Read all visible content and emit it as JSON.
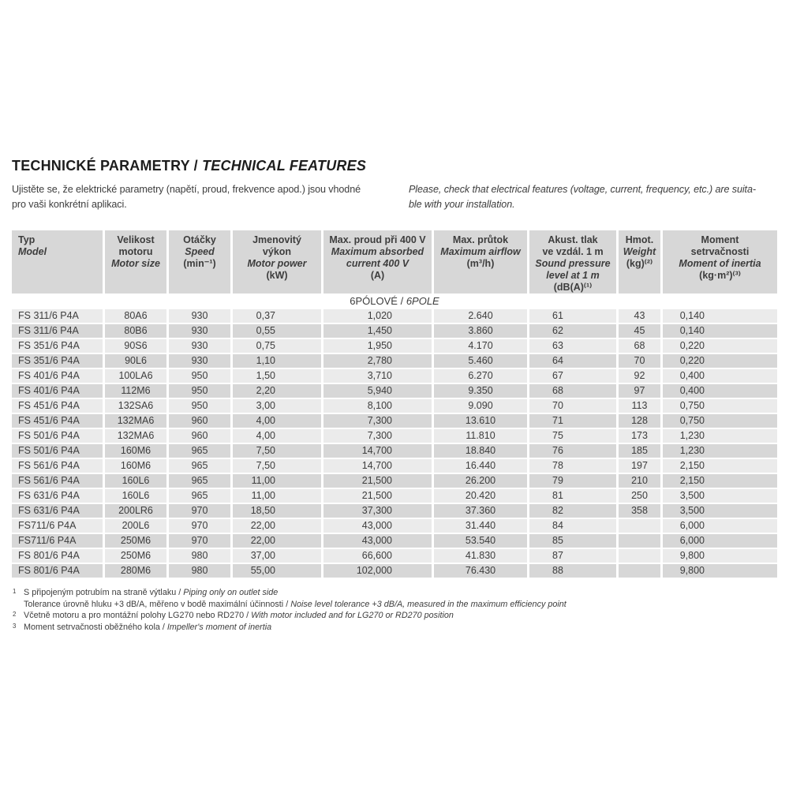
{
  "colors": {
    "header_cell": "#d7d7d7",
    "row_dark": "#d7d7d7",
    "row_light": "#ebebeb",
    "text": "#3d3d3d",
    "title_text": "#1d1d1d"
  },
  "header": {
    "title_cs": "TECHNICKÉ PARAMETRY / ",
    "title_en": "TECHNICAL FEATURES",
    "intro_cs_lines": [
      "Ujistěte se, že elektrické parametry (napětí, proud, frekvence apod.) jsou vhodné",
      "pro vaši konkrétní aplikaci."
    ],
    "intro_en_lines": [
      "Please, check that electrical features (voltage, current, frequency, etc.) are suita-",
      "ble with your installation."
    ]
  },
  "table": {
    "section_cs": "6PÓLOVÉ / ",
    "section_en": "6POLE",
    "columns": [
      {
        "cs_lines": [
          "Typ"
        ],
        "en_lines": [
          "Model"
        ],
        "unit": ""
      },
      {
        "cs_lines": [
          "Velikost",
          "motoru"
        ],
        "en_lines": [
          "Motor size"
        ],
        "unit": ""
      },
      {
        "cs_lines": [
          "Otáčky"
        ],
        "en_lines": [
          "Speed"
        ],
        "unit": "(min⁻¹)"
      },
      {
        "cs_lines": [
          "Jmenovitý",
          "výkon"
        ],
        "en_lines": [
          "Motor power"
        ],
        "unit": "(kW)"
      },
      {
        "cs_lines": [
          "Max. proud při 400 V"
        ],
        "en_lines": [
          "Maximum absorbed",
          "current 400 V"
        ],
        "unit": "(A)"
      },
      {
        "cs_lines": [
          "Max. průtok"
        ],
        "en_lines": [
          "Maximum airflow"
        ],
        "unit": "(m³/h)"
      },
      {
        "cs_lines": [
          "Akust. tlak",
          "ve vzdál. 1 m"
        ],
        "en_lines": [
          "Sound pressure",
          "level at 1 m"
        ],
        "unit": "(dB(A)⁽¹⁾"
      },
      {
        "cs_lines": [
          "Hmot."
        ],
        "en_lines": [
          "Weight"
        ],
        "unit": "(kg)⁽²⁾"
      },
      {
        "cs_lines": [
          "Moment",
          "setrvačnosti"
        ],
        "en_lines": [
          "Moment of inertia"
        ],
        "unit": "(kg·m²)⁽³⁾"
      }
    ],
    "rows": [
      [
        "FS 311/6 P4A",
        "80A6",
        "930",
        "0,37",
        "1,020",
        "2.640",
        "61",
        "43",
        "0,140"
      ],
      [
        "FS 311/6 P4A",
        "80B6",
        "930",
        "0,55",
        "1,450",
        "3.860",
        "62",
        "45",
        "0,140"
      ],
      [
        "FS 351/6 P4A",
        "90S6",
        "930",
        "0,75",
        "1,950",
        "4.170",
        "63",
        "68",
        "0,220"
      ],
      [
        "FS 351/6 P4A",
        "90L6",
        "930",
        "1,10",
        "2,780",
        "5.460",
        "64",
        "70",
        "0,220"
      ],
      [
        "FS 401/6 P4A",
        "100LA6",
        "950",
        "1,50",
        "3,710",
        "6.270",
        "67",
        "92",
        "0,400"
      ],
      [
        "FS 401/6 P4A",
        "112M6",
        "950",
        "2,20",
        "5,940",
        "9.350",
        "68",
        "97",
        "0,400"
      ],
      [
        "FS 451/6 P4A",
        "132SA6",
        "950",
        "3,00",
        "8,100",
        "9.090",
        "70",
        "113",
        "0,750"
      ],
      [
        "FS 451/6 P4A",
        "132MA6",
        "960",
        "4,00",
        "7,300",
        "13.610",
        "71",
        "128",
        "0,750"
      ],
      [
        "FS 501/6 P4A",
        "132MA6",
        "960",
        "4,00",
        "7,300",
        "11.810",
        "75",
        "173",
        "1,230"
      ],
      [
        "FS 501/6 P4A",
        "160M6",
        "965",
        "7,50",
        "14,700",
        "18.840",
        "76",
        "185",
        "1,230"
      ],
      [
        "FS 561/6 P4A",
        "160M6",
        "965",
        "7,50",
        "14,700",
        "16.440",
        "78",
        "197",
        "2,150"
      ],
      [
        "FS 561/6 P4A",
        "160L6",
        "965",
        "11,00",
        "21,500",
        "26.200",
        "79",
        "210",
        "2,150"
      ],
      [
        "FS 631/6 P4A",
        "160L6",
        "965",
        "11,00",
        "21,500",
        "20.420",
        "81",
        "250",
        "3,500"
      ],
      [
        "FS 631/6 P4A",
        "200LR6",
        "970",
        "18,50",
        "37,300",
        "37.360",
        "82",
        "358",
        "3,500"
      ],
      [
        "FS711/6 P4A",
        "200L6",
        "970",
        "22,00",
        "43,000",
        "31.440",
        "84",
        "",
        "6,000"
      ],
      [
        "FS711/6 P4A",
        "250M6",
        "970",
        "22,00",
        "43,000",
        "53.540",
        "85",
        "",
        "6,000"
      ],
      [
        "FS 801/6 P4A",
        "250M6",
        "980",
        "37,00",
        "66,600",
        "41.830",
        "87",
        "",
        "9,800"
      ],
      [
        "FS 801/6 P4A",
        "280M6",
        "980",
        "55,00",
        "102,000",
        "76.430",
        "88",
        "",
        "9,800"
      ]
    ],
    "footnotes": [
      {
        "marker": "1",
        "cs": "S připojeným potrubím na straně výtlaku",
        "en": "Piping only on outlet side"
      },
      {
        "marker": "",
        "cs": "Tolerance úrovně hluku +3 dB/A, měřeno v bodě maximální účinnosti",
        "en": "Noise level tolerance +3 dB/A, measured in the maximum efficiency point"
      },
      {
        "marker": "2",
        "cs": "Včetně motoru a pro montážní polohy LG270 nebo RD270",
        "en": "With motor included and for LG270 or RD270 position"
      },
      {
        "marker": "3",
        "cs": "Moment setrvačnosti oběžného kola",
        "en": "Impeller's moment of inertia"
      }
    ]
  }
}
